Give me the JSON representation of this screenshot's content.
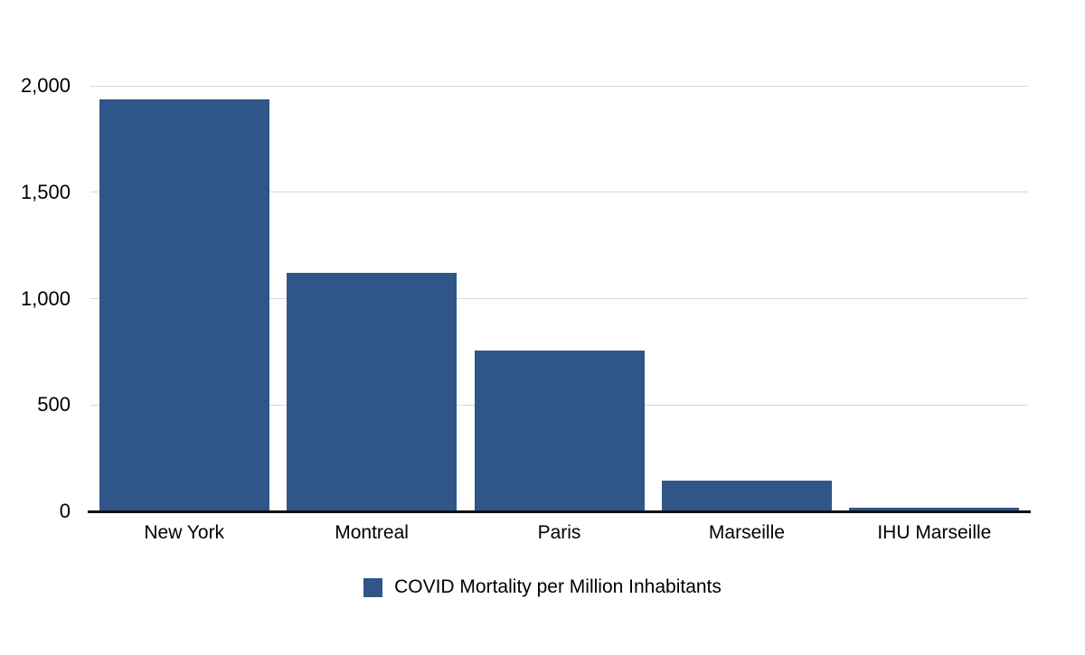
{
  "chart_data": {
    "type": "bar",
    "title": "",
    "categories": [
      "New York",
      "Montreal",
      "Paris",
      "Marseille",
      "IHU Marseille"
    ],
    "values": [
      1935,
      1122,
      756,
      145,
      18
    ],
    "series_name": "COVID Mortality per Million Inhabitants",
    "legend": "COVID Mortality per Million Inhabitants",
    "legend_position": "bottom",
    "xlabel": "",
    "ylabel": "",
    "ylim": [
      0,
      2000
    ],
    "yticks": [
      0,
      500,
      1000,
      1500,
      2000
    ],
    "ytick_labels": [
      "0",
      "500",
      "1,000",
      "1,500",
      "2,000"
    ],
    "grid": true,
    "bar_color": "#305689",
    "gridline_color": "#d8d8d8",
    "axis_color": "#111111",
    "background_color": "#ffffff"
  }
}
